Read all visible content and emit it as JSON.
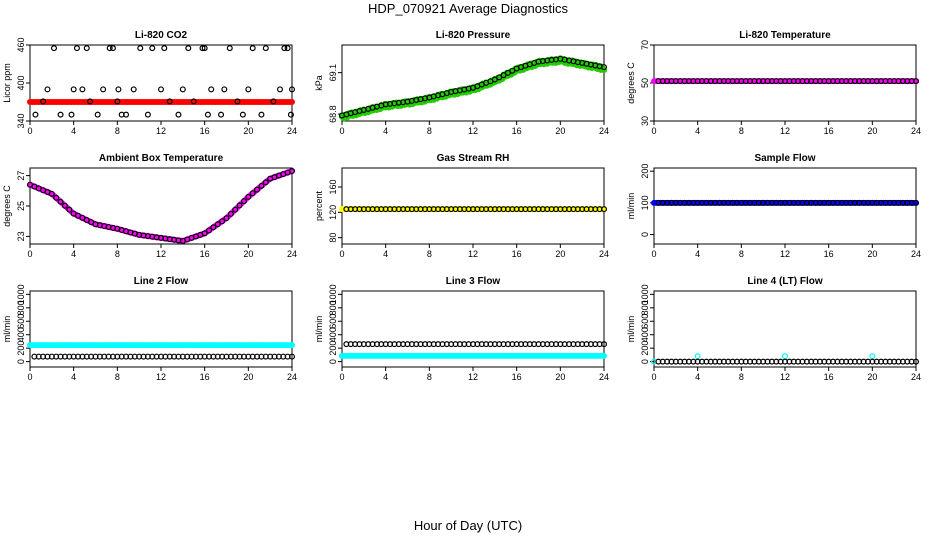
{
  "figure": {
    "title": "HDP_070921  Average Diagnostics",
    "xlabel": "Hour of Day (UTC)"
  },
  "colors": {
    "red": "#ff0000",
    "green": "#22cc00",
    "magenta": "#ff00ff",
    "yellow": "#ffff00",
    "blue": "#0000ff",
    "cyan": "#00ffff",
    "black": "#000000"
  },
  "chart_data": [
    {
      "type": "scatter",
      "title": "Li-820 CO2",
      "ylabel": "Licor ppm",
      "xlim": [
        0,
        24
      ],
      "ylim": [
        340,
        460
      ],
      "xticks": [
        0,
        4,
        8,
        12,
        16,
        20,
        24
      ],
      "yticks": [
        340,
        400,
        460
      ],
      "series": [
        {
          "color": "red",
          "style": "filled",
          "segment": [
            0,
            24,
            0.2,
            370,
            370
          ]
        },
        {
          "color": "black",
          "style": "open",
          "points": [
            [
              0.5,
              350
            ],
            [
              1.2,
              371
            ],
            [
              1.6,
              390
            ],
            [
              2.2,
              455
            ],
            [
              2.8,
              350
            ],
            [
              3.8,
              350
            ],
            [
              4.0,
              390
            ],
            [
              4.3,
              455
            ],
            [
              4.8,
              390
            ],
            [
              5.2,
              455
            ],
            [
              5.5,
              371
            ],
            [
              6.2,
              350
            ],
            [
              6.7,
              390
            ],
            [
              7.3,
              455
            ],
            [
              7.6,
              455
            ],
            [
              8.0,
              371
            ],
            [
              8.1,
              390
            ],
            [
              8.4,
              350
            ],
            [
              8.8,
              350
            ],
            [
              9.5,
              390
            ],
            [
              10.1,
              455
            ],
            [
              10.8,
              350
            ],
            [
              11.2,
              455
            ],
            [
              12.0,
              390
            ],
            [
              12.3,
              455
            ],
            [
              12.8,
              371
            ],
            [
              13.6,
              350
            ],
            [
              14.0,
              390
            ],
            [
              14.5,
              455
            ],
            [
              15.0,
              371
            ],
            [
              15.8,
              455
            ],
            [
              16.0,
              455
            ],
            [
              16.3,
              350
            ],
            [
              16.6,
              390
            ],
            [
              17.5,
              350
            ],
            [
              17.8,
              390
            ],
            [
              18.3,
              455
            ],
            [
              19.0,
              371
            ],
            [
              19.5,
              350
            ],
            [
              20.0,
              390
            ],
            [
              20.4,
              455
            ],
            [
              21.2,
              350
            ],
            [
              21.6,
              455
            ],
            [
              22.3,
              371
            ],
            [
              22.9,
              390
            ],
            [
              23.3,
              455
            ],
            [
              23.6,
              455
            ],
            [
              23.9,
              350
            ],
            [
              24.0,
              390
            ]
          ]
        }
      ]
    },
    {
      "type": "scatter",
      "title": "Li-820 Pressure",
      "ylabel": "kPa",
      "xlim": [
        0,
        24
      ],
      "ylim": [
        68.75,
        69.3
      ],
      "xticks": [
        0,
        4,
        8,
        12,
        16,
        20,
        24
      ],
      "yticks": [
        68.8,
        69.1
      ],
      "series": [
        {
          "name": "raw",
          "color": "green",
          "style": "filled",
          "curve": [
            [
              0,
              68.78
            ],
            [
              2,
              68.82
            ],
            [
              4,
              68.86
            ],
            [
              6,
              68.88
            ],
            [
              8,
              68.91
            ],
            [
              10,
              68.95
            ],
            [
              12,
              68.98
            ],
            [
              14,
              69.04
            ],
            [
              16,
              69.12
            ],
            [
              18,
              69.17
            ],
            [
              20,
              69.19
            ],
            [
              22,
              69.16
            ],
            [
              24,
              69.13
            ]
          ],
          "step": 0.1,
          "jitter": 0.015
        },
        {
          "name": "avg",
          "color": "black",
          "style": "open",
          "curve": [
            [
              0,
              68.79
            ],
            [
              2,
              68.83
            ],
            [
              4,
              68.87
            ],
            [
              6,
              68.89
            ],
            [
              8,
              68.92
            ],
            [
              10,
              68.96
            ],
            [
              12,
              68.99
            ],
            [
              14,
              69.05
            ],
            [
              16,
              69.13
            ],
            [
              18,
              69.18
            ],
            [
              20,
              69.2
            ],
            [
              22,
              69.17
            ],
            [
              24,
              69.14
            ]
          ],
          "step": 0.4,
          "jitter": 0
        }
      ]
    },
    {
      "type": "scatter",
      "title": "Li-820 Temperature",
      "ylabel": "degrees C",
      "xlim": [
        0,
        24
      ],
      "ylim": [
        30,
        70
      ],
      "xticks": [
        0,
        4,
        8,
        12,
        16,
        20,
        24
      ],
      "yticks": [
        30,
        50,
        70
      ],
      "series": [
        {
          "color": "magenta",
          "style": "filled",
          "segment": [
            0,
            24,
            0.2,
            51,
            51
          ]
        },
        {
          "color": "black",
          "style": "open",
          "segment": [
            0.4,
            24,
            0.4,
            51,
            51
          ]
        }
      ]
    },
    {
      "type": "scatter",
      "title": "Ambient Box Temperature",
      "ylabel": "degrees C",
      "xlim": [
        0,
        24
      ],
      "ylim": [
        22.5,
        27.5
      ],
      "xticks": [
        0,
        4,
        8,
        12,
        16,
        20,
        24
      ],
      "yticks": [
        23,
        25,
        27
      ],
      "series": [
        {
          "name": "raw",
          "color": "magenta",
          "style": "filled",
          "curve": [
            [
              0,
              26.4
            ],
            [
              2,
              25.8
            ],
            [
              4,
              24.5
            ],
            [
              6,
              23.8
            ],
            [
              8,
              23.5
            ],
            [
              10,
              23.1
            ],
            [
              12,
              22.9
            ],
            [
              14,
              22.7
            ],
            [
              16,
              23.2
            ],
            [
              18,
              24.2
            ],
            [
              20,
              25.6
            ],
            [
              22,
              26.8
            ],
            [
              24,
              27.3
            ]
          ],
          "step": 0.15,
          "jitter": 0
        },
        {
          "name": "avg",
          "color": "black",
          "style": "open",
          "curve": [
            [
              0,
              26.4
            ],
            [
              2,
              25.8
            ],
            [
              4,
              24.5
            ],
            [
              6,
              23.8
            ],
            [
              8,
              23.5
            ],
            [
              10,
              23.1
            ],
            [
              12,
              22.9
            ],
            [
              14,
              22.7
            ],
            [
              16,
              23.2
            ],
            [
              18,
              24.2
            ],
            [
              20,
              25.6
            ],
            [
              22,
              26.8
            ],
            [
              24,
              27.3
            ]
          ],
          "step": 0.4,
          "jitter": 0
        }
      ]
    },
    {
      "type": "scatter",
      "title": "Gas Stream RH",
      "ylabel": "percent",
      "xlim": [
        0,
        24
      ],
      "ylim": [
        70,
        190
      ],
      "xticks": [
        0,
        4,
        8,
        12,
        16,
        20,
        24
      ],
      "yticks": [
        80,
        120,
        160
      ],
      "series": [
        {
          "color": "yellow",
          "style": "filled",
          "segment": [
            0,
            24,
            0.2,
            125,
            125
          ]
        },
        {
          "color": "black",
          "style": "open",
          "segment": [
            0.4,
            24,
            0.4,
            125,
            125
          ]
        }
      ]
    },
    {
      "type": "scatter",
      "title": "Sample Flow",
      "ylabel": "ml/min",
      "xlim": [
        0,
        24
      ],
      "ylim": [
        -30,
        210
      ],
      "xticks": [
        0,
        4,
        8,
        12,
        16,
        20,
        24
      ],
      "yticks": [
        0,
        100,
        200
      ],
      "series": [
        {
          "color": "blue",
          "style": "filled",
          "segment": [
            0,
            24,
            0.2,
            100,
            100
          ]
        },
        {
          "color": "black",
          "style": "open",
          "segment": [
            0.4,
            24,
            0.4,
            100,
            100
          ]
        }
      ]
    },
    {
      "type": "scatter",
      "title": "Line 2 Flow",
      "ylabel": "ml/min",
      "xlim": [
        0,
        24
      ],
      "ylim": [
        -80,
        1050
      ],
      "xticks": [
        0,
        4,
        8,
        12,
        16,
        20,
        24
      ],
      "yticks": [
        0,
        200,
        400,
        600,
        800,
        1000
      ],
      "series": [
        {
          "color": "cyan",
          "style": "filled",
          "segment": [
            0,
            24,
            0.2,
            245,
            245
          ]
        },
        {
          "color": "black",
          "style": "open",
          "segment": [
            0.4,
            24,
            0.4,
            75,
            75
          ]
        }
      ]
    },
    {
      "type": "scatter",
      "title": "Line 3 Flow",
      "ylabel": "ml/min",
      "xlim": [
        0,
        24
      ],
      "ylim": [
        -80,
        1050
      ],
      "xticks": [
        0,
        4,
        8,
        12,
        16,
        20,
        24
      ],
      "yticks": [
        0,
        200,
        400,
        600,
        800,
        1000
      ],
      "series": [
        {
          "color": "cyan",
          "style": "filled",
          "segment": [
            0,
            24,
            0.2,
            85,
            85
          ]
        },
        {
          "color": "black",
          "style": "open",
          "segment": [
            0.4,
            24,
            0.4,
            260,
            260
          ]
        }
      ]
    },
    {
      "type": "scatter",
      "title": "Line 4 (LT) Flow",
      "ylabel": "ml/min",
      "xlim": [
        0,
        24
      ],
      "ylim": [
        -80,
        1050
      ],
      "xticks": [
        0,
        4,
        8,
        12,
        16,
        20,
        24
      ],
      "yticks": [
        0,
        200,
        400,
        600,
        800,
        1000
      ],
      "series": [
        {
          "color": "cyan",
          "style": "open",
          "points": [
            [
              0,
              0
            ],
            [
              4,
              80
            ],
            [
              12,
              80
            ],
            [
              20,
              80
            ]
          ]
        },
        {
          "color": "black",
          "style": "open",
          "segment": [
            0.4,
            24,
            0.4,
            0,
            0
          ]
        }
      ]
    }
  ]
}
